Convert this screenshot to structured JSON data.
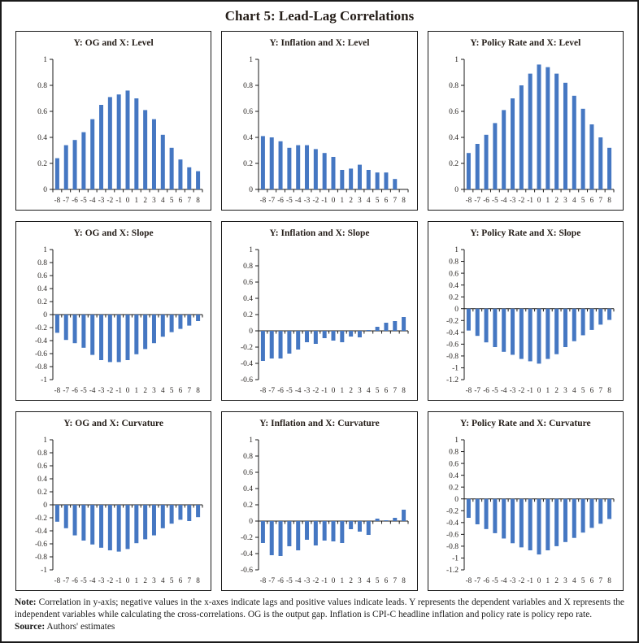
{
  "page": {
    "title": "Chart 5: Lead-Lag Correlations"
  },
  "style": {
    "bar_color": "#4577c2",
    "axis_color": "#1a1a1a",
    "text_color": "#2a2623",
    "panel_border_color": "#1a1a1a"
  },
  "footer": {
    "note_label": "Note:",
    "note_text": " Correlation in y-axis; negative values in the x-axes indicate lags and positive values indicate leads. Y represents the dependent variables and X represents the independent variables while calculating the cross-correlations. OG is the output gap. Inflation is CPI-C headline inflation and policy rate is policy repo rate.",
    "source_label": "Source:",
    "source_text": " Authors' estimates"
  },
  "chart_data": [
    {
      "type": "bar",
      "title": "Y: OG and X: Level",
      "xlabel": "",
      "ylabel": "",
      "ylim": [
        0,
        1
      ],
      "ytick_step": 0.2,
      "grid": false,
      "legend": "none",
      "categories": [
        "-8",
        "-7",
        "-6",
        "-5",
        "-4",
        "-3",
        "-2",
        "-1",
        "0",
        "1",
        "2",
        "3",
        "4",
        "5",
        "6",
        "7",
        "8"
      ],
      "values": [
        0.24,
        0.34,
        0.38,
        0.44,
        0.54,
        0.65,
        0.71,
        0.73,
        0.76,
        0.7,
        0.61,
        0.54,
        0.42,
        0.32,
        0.23,
        0.17,
        0.14
      ]
    },
    {
      "type": "bar",
      "title": "Y: Inflation and X: Level",
      "xlabel": "",
      "ylabel": "",
      "ylim": [
        0,
        1
      ],
      "ytick_step": 0.2,
      "grid": false,
      "legend": "none",
      "categories": [
        "-8",
        "-7",
        "-6",
        "-5",
        "-4",
        "-3",
        "-2",
        "-1",
        "0",
        "1",
        "2",
        "3",
        "4",
        "5",
        "6",
        "7",
        "8"
      ],
      "values": [
        0.41,
        0.4,
        0.37,
        0.32,
        0.34,
        0.34,
        0.31,
        0.28,
        0.25,
        0.15,
        0.16,
        0.19,
        0.15,
        0.13,
        0.13,
        0.08,
        0.0
      ]
    },
    {
      "type": "bar",
      "title": "Y: Policy Rate and X: Level",
      "xlabel": "",
      "ylabel": "",
      "ylim": [
        0,
        1
      ],
      "ytick_step": 0.2,
      "grid": false,
      "legend": "none",
      "categories": [
        "-8",
        "-7",
        "-6",
        "-5",
        "-4",
        "-3",
        "-2",
        "-1",
        "0",
        "1",
        "2",
        "3",
        "4",
        "5",
        "6",
        "7",
        "8"
      ],
      "values": [
        0.28,
        0.35,
        0.42,
        0.51,
        0.61,
        0.7,
        0.8,
        0.89,
        0.96,
        0.94,
        0.89,
        0.82,
        0.72,
        0.62,
        0.5,
        0.4,
        0.32
      ]
    },
    {
      "type": "bar",
      "title": "Y: OG and X: Slope",
      "xlabel": "",
      "ylabel": "",
      "ylim": [
        -1,
        1
      ],
      "ytick_step": 0.2,
      "grid": false,
      "legend": "none",
      "categories": [
        "-8",
        "-7",
        "-6",
        "-5",
        "-4",
        "-3",
        "-2",
        "-1",
        "0",
        "1",
        "2",
        "3",
        "4",
        "5",
        "6",
        "7",
        "8"
      ],
      "values": [
        -0.28,
        -0.39,
        -0.44,
        -0.51,
        -0.62,
        -0.7,
        -0.73,
        -0.73,
        -0.7,
        -0.61,
        -0.53,
        -0.44,
        -0.34,
        -0.27,
        -0.22,
        -0.17,
        -0.1
      ]
    },
    {
      "type": "bar",
      "title": "Y: Inflation and X: Slope",
      "xlabel": "",
      "ylabel": "",
      "ylim": [
        -0.6,
        1
      ],
      "ytick_step": 0.2,
      "grid": false,
      "legend": "none",
      "categories": [
        "-8",
        "-7",
        "-6",
        "-5",
        "-4",
        "-3",
        "-2",
        "-1",
        "0",
        "1",
        "2",
        "3",
        "4",
        "5",
        "6",
        "7",
        "8"
      ],
      "values": [
        -0.37,
        -0.34,
        -0.34,
        -0.28,
        -0.23,
        -0.14,
        -0.16,
        -0.09,
        -0.12,
        -0.14,
        -0.07,
        -0.08,
        0.01,
        0.05,
        0.1,
        0.12,
        0.17
      ]
    },
    {
      "type": "bar",
      "title": "Y: Policy Rate and X: Slope",
      "xlabel": "",
      "ylabel": "",
      "ylim": [
        -1.2,
        1
      ],
      "ytick_step": 0.2,
      "grid": false,
      "legend": "none",
      "categories": [
        "-8",
        "-7",
        "-6",
        "-5",
        "-4",
        "-3",
        "-2",
        "-1",
        "0",
        "1",
        "2",
        "3",
        "4",
        "5",
        "6",
        "7",
        "8"
      ],
      "values": [
        -0.37,
        -0.46,
        -0.57,
        -0.65,
        -0.73,
        -0.78,
        -0.85,
        -0.89,
        -0.93,
        -0.85,
        -0.77,
        -0.65,
        -0.55,
        -0.45,
        -0.36,
        -0.27,
        -0.19
      ]
    },
    {
      "type": "bar",
      "title": "Y: OG and X: Curvature",
      "xlabel": "",
      "ylabel": "",
      "ylim": [
        -1,
        1
      ],
      "ytick_step": 0.2,
      "grid": false,
      "legend": "none",
      "categories": [
        "-8",
        "-7",
        "-6",
        "-5",
        "-4",
        "-3",
        "-2",
        "-1",
        "0",
        "1",
        "2",
        "3",
        "4",
        "5",
        "6",
        "7",
        "8"
      ],
      "values": [
        -0.26,
        -0.36,
        -0.47,
        -0.55,
        -0.61,
        -0.66,
        -0.7,
        -0.72,
        -0.68,
        -0.59,
        -0.53,
        -0.47,
        -0.36,
        -0.29,
        -0.23,
        -0.25,
        -0.19
      ]
    },
    {
      "type": "bar",
      "title": "Y: Inflation and X: Curvature",
      "xlabel": "",
      "ylabel": "",
      "ylim": [
        -0.6,
        1
      ],
      "ytick_step": 0.2,
      "grid": false,
      "legend": "none",
      "categories": [
        "-8",
        "-7",
        "-6",
        "-5",
        "-4",
        "-3",
        "-2",
        "-1",
        "0",
        "1",
        "2",
        "3",
        "4",
        "5",
        "6",
        "7",
        "8"
      ],
      "values": [
        -0.27,
        -0.42,
        -0.43,
        -0.31,
        -0.36,
        -0.23,
        -0.3,
        -0.24,
        -0.25,
        -0.27,
        -0.1,
        -0.13,
        -0.17,
        0.03,
        0.01,
        0.04,
        0.14
      ]
    },
    {
      "type": "bar",
      "title": "Y: Policy Rate and X: Curvature",
      "xlabel": "",
      "ylabel": "",
      "ylim": [
        -1.2,
        1
      ],
      "ytick_step": 0.2,
      "grid": false,
      "legend": "none",
      "categories": [
        "-8",
        "-7",
        "-6",
        "-5",
        "-4",
        "-3",
        "-2",
        "-1",
        "0",
        "1",
        "2",
        "3",
        "4",
        "5",
        "6",
        "7",
        "8"
      ],
      "values": [
        -0.32,
        -0.43,
        -0.51,
        -0.58,
        -0.67,
        -0.75,
        -0.82,
        -0.87,
        -0.94,
        -0.87,
        -0.8,
        -0.73,
        -0.66,
        -0.57,
        -0.49,
        -0.42,
        -0.34
      ]
    }
  ]
}
